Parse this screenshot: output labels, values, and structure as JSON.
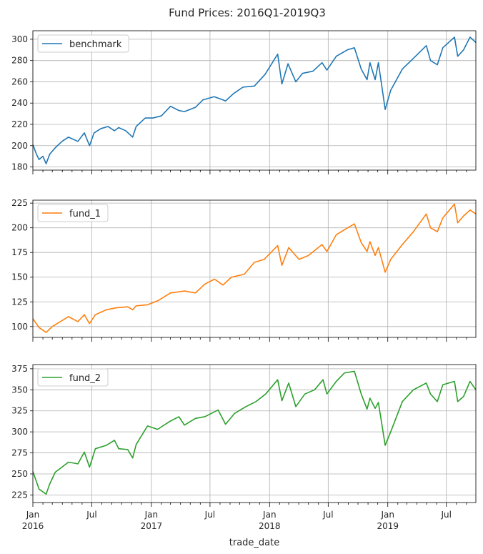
{
  "chart_data": {
    "type": "line",
    "title": "Fund Prices: 2016Q1-2019Q3",
    "xlabel": "trade_date",
    "x_range": [
      "2016-01-01",
      "2019-09-30"
    ],
    "x_major_ticks": [
      {
        "date": "2016-01-01",
        "line1": "Jan",
        "line2": "2016"
      },
      {
        "date": "2016-07-01",
        "line1": "Jul",
        "line2": ""
      },
      {
        "date": "2017-01-01",
        "line1": "Jan",
        "line2": "2017"
      },
      {
        "date": "2017-07-01",
        "line1": "Jul",
        "line2": ""
      },
      {
        "date": "2018-01-01",
        "line1": "Jan",
        "line2": "2018"
      },
      {
        "date": "2018-07-01",
        "line1": "Jul",
        "line2": ""
      },
      {
        "date": "2019-01-01",
        "line1": "Jan",
        "line2": "2019"
      },
      {
        "date": "2019-07-01",
        "line1": "Jul",
        "line2": ""
      }
    ],
    "grid": true,
    "legend_position": "upper-left",
    "panels": [
      {
        "series_name": "benchmark",
        "color": "#1f77b4",
        "ylim": [
          177,
          308
        ],
        "yticks": [
          180,
          200,
          220,
          240,
          260,
          280,
          300
        ],
        "points": [
          [
            "2016-01-01",
            201
          ],
          [
            "2016-01-12",
            192
          ],
          [
            "2016-01-20",
            187
          ],
          [
            "2016-02-01",
            190
          ],
          [
            "2016-02-11",
            183
          ],
          [
            "2016-02-22",
            192
          ],
          [
            "2016-03-10",
            198
          ],
          [
            "2016-03-31",
            204
          ],
          [
            "2016-04-20",
            208
          ],
          [
            "2016-05-19",
            204
          ],
          [
            "2016-06-08",
            212
          ],
          [
            "2016-06-24",
            200
          ],
          [
            "2016-07-08",
            212
          ],
          [
            "2016-07-29",
            216
          ],
          [
            "2016-08-20",
            218
          ],
          [
            "2016-09-09",
            214
          ],
          [
            "2016-09-22",
            217
          ],
          [
            "2016-10-14",
            214
          ],
          [
            "2016-11-04",
            208
          ],
          [
            "2016-11-15",
            218
          ],
          [
            "2016-12-13",
            226
          ],
          [
            "2017-01-06",
            226
          ],
          [
            "2017-02-01",
            228
          ],
          [
            "2017-03-01",
            237
          ],
          [
            "2017-03-27",
            233
          ],
          [
            "2017-04-13",
            232
          ],
          [
            "2017-05-17",
            236
          ],
          [
            "2017-06-09",
            243
          ],
          [
            "2017-07-14",
            246
          ],
          [
            "2017-08-10",
            243
          ],
          [
            "2017-08-18",
            242
          ],
          [
            "2017-09-12",
            249
          ],
          [
            "2017-10-11",
            255
          ],
          [
            "2017-11-15",
            256
          ],
          [
            "2017-12-18",
            267
          ],
          [
            "2018-01-26",
            286
          ],
          [
            "2018-02-08",
            258
          ],
          [
            "2018-02-27",
            277
          ],
          [
            "2018-03-23",
            260
          ],
          [
            "2018-04-13",
            268
          ],
          [
            "2018-05-15",
            270
          ],
          [
            "2018-06-12",
            278
          ],
          [
            "2018-06-27",
            271
          ],
          [
            "2018-07-26",
            284
          ],
          [
            "2018-08-29",
            290
          ],
          [
            "2018-09-20",
            292
          ],
          [
            "2018-10-11",
            272
          ],
          [
            "2018-10-29",
            262
          ],
          [
            "2018-11-07",
            278
          ],
          [
            "2018-11-23",
            262
          ],
          [
            "2018-12-03",
            278
          ],
          [
            "2018-12-24",
            234
          ],
          [
            "2019-01-10",
            252
          ],
          [
            "2019-02-15",
            272
          ],
          [
            "2019-03-21",
            282
          ],
          [
            "2019-04-30",
            294
          ],
          [
            "2019-05-13",
            280
          ],
          [
            "2019-06-03",
            276
          ],
          [
            "2019-06-20",
            292
          ],
          [
            "2019-07-26",
            302
          ],
          [
            "2019-08-05",
            284
          ],
          [
            "2019-08-23",
            290
          ],
          [
            "2019-09-12",
            302
          ],
          [
            "2019-09-30",
            297
          ]
        ]
      },
      {
        "series_name": "fund_1",
        "color": "#ff7f0e",
        "ylim": [
          89,
          228
        ],
        "yticks": [
          100,
          125,
          150,
          175,
          200,
          225
        ],
        "points": [
          [
            "2016-01-01",
            108
          ],
          [
            "2016-01-20",
            99
          ],
          [
            "2016-02-11",
            94
          ],
          [
            "2016-03-01",
            100
          ],
          [
            "2016-04-20",
            110
          ],
          [
            "2016-05-19",
            105
          ],
          [
            "2016-06-08",
            112
          ],
          [
            "2016-06-24",
            103
          ],
          [
            "2016-07-12",
            112
          ],
          [
            "2016-08-15",
            117
          ],
          [
            "2016-09-15",
            119
          ],
          [
            "2016-10-20",
            120
          ],
          [
            "2016-11-04",
            117
          ],
          [
            "2016-11-15",
            121
          ],
          [
            "2016-12-20",
            122
          ],
          [
            "2017-01-20",
            126
          ],
          [
            "2017-03-01",
            134
          ],
          [
            "2017-04-13",
            136
          ],
          [
            "2017-05-17",
            134
          ],
          [
            "2017-06-15",
            143
          ],
          [
            "2017-07-15",
            148
          ],
          [
            "2017-08-10",
            142
          ],
          [
            "2017-09-05",
            150
          ],
          [
            "2017-10-15",
            153
          ],
          [
            "2017-11-15",
            165
          ],
          [
            "2017-12-15",
            168
          ],
          [
            "2018-01-26",
            182
          ],
          [
            "2018-02-08",
            162
          ],
          [
            "2018-03-01",
            180
          ],
          [
            "2018-04-02",
            168
          ],
          [
            "2018-05-01",
            172
          ],
          [
            "2018-06-12",
            183
          ],
          [
            "2018-06-27",
            176
          ],
          [
            "2018-07-26",
            193
          ],
          [
            "2018-08-20",
            198
          ],
          [
            "2018-09-20",
            204
          ],
          [
            "2018-10-11",
            185
          ],
          [
            "2018-10-29",
            176
          ],
          [
            "2018-11-07",
            186
          ],
          [
            "2018-11-23",
            172
          ],
          [
            "2018-12-03",
            180
          ],
          [
            "2018-12-24",
            155
          ],
          [
            "2019-01-10",
            168
          ],
          [
            "2019-02-15",
            183
          ],
          [
            "2019-03-21",
            196
          ],
          [
            "2019-04-30",
            214
          ],
          [
            "2019-05-13",
            200
          ],
          [
            "2019-06-03",
            196
          ],
          [
            "2019-06-20",
            210
          ],
          [
            "2019-07-26",
            224
          ],
          [
            "2019-08-05",
            205
          ],
          [
            "2019-08-23",
            212
          ],
          [
            "2019-09-12",
            218
          ],
          [
            "2019-09-30",
            214
          ]
        ]
      },
      {
        "series_name": "fund_2",
        "color": "#2ca02c",
        "ylim": [
          216,
          380
        ],
        "yticks": [
          225,
          250,
          275,
          300,
          325,
          350,
          375
        ],
        "points": [
          [
            "2016-01-01",
            253
          ],
          [
            "2016-01-20",
            232
          ],
          [
            "2016-02-11",
            226
          ],
          [
            "2016-02-22",
            238
          ],
          [
            "2016-03-10",
            252
          ],
          [
            "2016-04-20",
            264
          ],
          [
            "2016-05-19",
            262
          ],
          [
            "2016-06-08",
            276
          ],
          [
            "2016-06-24",
            258
          ],
          [
            "2016-07-12",
            280
          ],
          [
            "2016-08-15",
            284
          ],
          [
            "2016-09-09",
            290
          ],
          [
            "2016-09-22",
            280
          ],
          [
            "2016-10-20",
            279
          ],
          [
            "2016-11-04",
            269
          ],
          [
            "2016-11-15",
            285
          ],
          [
            "2016-12-20",
            307
          ],
          [
            "2017-01-20",
            303
          ],
          [
            "2017-02-25",
            312
          ],
          [
            "2017-03-27",
            318
          ],
          [
            "2017-04-13",
            308
          ],
          [
            "2017-05-17",
            316
          ],
          [
            "2017-06-15",
            318
          ],
          [
            "2017-07-26",
            326
          ],
          [
            "2017-08-18",
            309
          ],
          [
            "2017-09-15",
            322
          ],
          [
            "2017-10-20",
            330
          ],
          [
            "2017-11-20",
            336
          ],
          [
            "2017-12-20",
            345
          ],
          [
            "2018-01-26",
            362
          ],
          [
            "2018-02-08",
            337
          ],
          [
            "2018-03-01",
            358
          ],
          [
            "2018-03-23",
            330
          ],
          [
            "2018-04-20",
            345
          ],
          [
            "2018-05-20",
            350
          ],
          [
            "2018-06-15",
            362
          ],
          [
            "2018-06-27",
            345
          ],
          [
            "2018-07-26",
            360
          ],
          [
            "2018-08-20",
            370
          ],
          [
            "2018-09-20",
            372
          ],
          [
            "2018-10-11",
            345
          ],
          [
            "2018-10-29",
            327
          ],
          [
            "2018-11-07",
            340
          ],
          [
            "2018-11-23",
            328
          ],
          [
            "2018-12-03",
            335
          ],
          [
            "2018-12-24",
            284
          ],
          [
            "2019-01-10",
            300
          ],
          [
            "2019-02-15",
            336
          ],
          [
            "2019-03-21",
            350
          ],
          [
            "2019-04-30",
            358
          ],
          [
            "2019-05-13",
            345
          ],
          [
            "2019-06-03",
            336
          ],
          [
            "2019-06-20",
            356
          ],
          [
            "2019-07-26",
            360
          ],
          [
            "2019-08-05",
            336
          ],
          [
            "2019-08-23",
            342
          ],
          [
            "2019-09-12",
            360
          ],
          [
            "2019-09-30",
            350
          ]
        ]
      }
    ]
  }
}
